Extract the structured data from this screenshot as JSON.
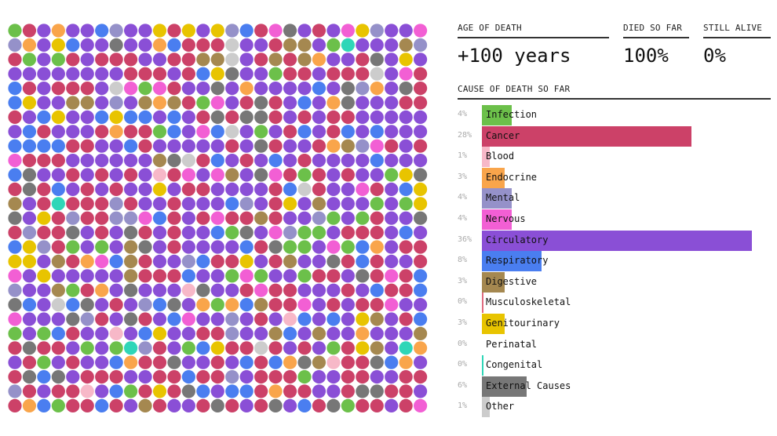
{
  "header": {
    "age_label": "AGE OF DEATH",
    "age_value": "+100 years",
    "died_label": "DIED SO FAR",
    "died_value": "100%",
    "alive_label": "STILL ALIVE",
    "alive_value": "0%",
    "cause_label": "CAUSE OF DEATH SO FAR"
  },
  "chart_data": {
    "type": "bar",
    "orientation": "horizontal",
    "title": "CAUSE OF DEATH SO FAR",
    "categories": [
      "Infection",
      "Cancer",
      "Blood",
      "Endocrine",
      "Mental",
      "Nervous",
      "Circulatory",
      "Respiratory",
      "Digestive",
      "Musculoskeletal",
      "Genitourinary",
      "Perinatal",
      "Congenital",
      "External Causes",
      "Other"
    ],
    "values": [
      4,
      28,
      1,
      3,
      4,
      4,
      36,
      8,
      3,
      0,
      3,
      0,
      0,
      6,
      1
    ],
    "value_labels": [
      "4%",
      "28%",
      "1%",
      "3%",
      "4%",
      "4%",
      "36%",
      "8%",
      "3%",
      "0%",
      "3%",
      "0%",
      "0%",
      "6%",
      "1%"
    ],
    "colors": [
      "#6cc04a",
      "#cc4168",
      "#f7b8c8",
      "#f9a54b",
      "#9591c9",
      "#f25fd4",
      "#8a4fd6",
      "#4a7ef0",
      "#a58850",
      "#e06b80",
      "#e8c400",
      "#d8d8d8",
      "#2fd6b8",
      "#777777",
      "#cccccc"
    ],
    "dot_grid": {
      "columns": 29,
      "rows": 27
    }
  }
}
